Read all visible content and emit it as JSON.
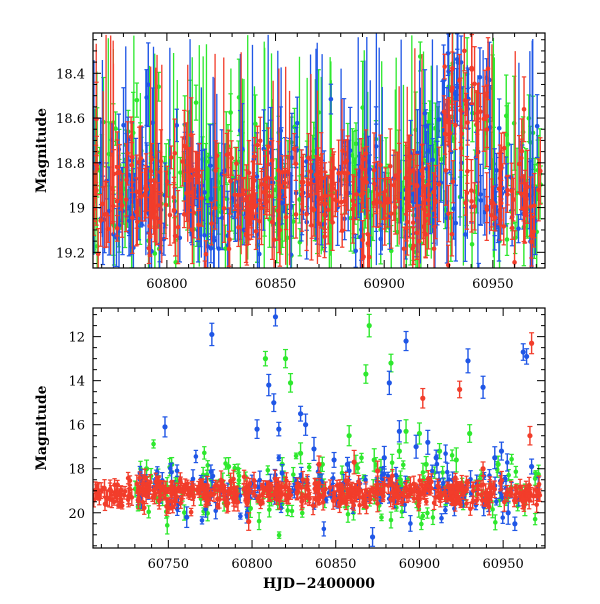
{
  "chart_data": [
    {
      "type": "scatter",
      "title": "",
      "xlabel": "",
      "ylabel": "Magnitude",
      "xlim": [
        60766,
        60974
      ],
      "ylim": [
        19.27,
        18.22
      ],
      "y_inverted": true,
      "xticks": [
        60800,
        60850,
        60900,
        60950
      ],
      "xtick_labels": [
        "60800",
        "60850",
        "60900",
        "60950"
      ],
      "yticks": [
        18.4,
        18.6,
        18.8,
        19.0,
        19.2
      ],
      "ytick_labels": [
        "18.4",
        "18.6",
        "18.8",
        "19",
        "19.2"
      ],
      "series": [
        {
          "name": "green",
          "color": "#2ee82e",
          "x_range": [
            60766,
            60972
          ],
          "y_center": 18.9,
          "y_spread": 0.35,
          "err": 0.15,
          "n": 260
        },
        {
          "name": "blue",
          "color": "#1f56e6",
          "x_range": [
            60766,
            60972
          ],
          "y_center": 18.95,
          "y_spread": 0.3,
          "err": 0.15,
          "n": 260
        },
        {
          "name": "red",
          "color": "#f23d2b",
          "x_range": [
            60766,
            60972
          ],
          "y_center": 18.95,
          "y_spread": 0.25,
          "err": 0.12,
          "n": 360
        }
      ]
    },
    {
      "type": "scatter",
      "title": "",
      "xlabel": "HJD−2400000",
      "ylabel": "Magnitude",
      "xlim": [
        60705,
        60975
      ],
      "ylim": [
        21.6,
        10.7
      ],
      "y_inverted": true,
      "xticks": [
        60750,
        60800,
        60850,
        60900,
        60950
      ],
      "xtick_labels": [
        "60750",
        "60800",
        "60850",
        "60900",
        "60950"
      ],
      "yticks": [
        12,
        14,
        16,
        18,
        20
      ],
      "ytick_labels": [
        "12",
        "14",
        "16",
        "18",
        "20"
      ],
      "series": [
        {
          "name": "green",
          "color": "#2ee82e",
          "base": {
            "x_range": [
              60730,
              60972
            ],
            "y_center": 19.0,
            "y_spread": 1.4,
            "err": 0.3,
            "n": 170
          },
          "outliers": [
            [
              60737,
              18.0
            ],
            [
              60752,
              17.8
            ],
            [
              60786,
              17.9
            ],
            [
              60799,
              19.8
            ],
            [
              60808,
              13.0
            ],
            [
              60818,
              17.8
            ],
            [
              60820,
              13.0
            ],
            [
              60823,
              14.1
            ],
            [
              60829,
              17.3
            ],
            [
              60842,
              17.8
            ],
            [
              60858,
              16.5
            ],
            [
              60862,
              17.8
            ],
            [
              60868,
              13.7
            ],
            [
              60870,
              11.5
            ],
            [
              60873,
              17.6
            ],
            [
              60877,
              18.0
            ],
            [
              60883,
              13.2
            ],
            [
              60888,
              17.2
            ],
            [
              60892,
              16.3
            ],
            [
              60900,
              16.4
            ],
            [
              60904,
              17.8
            ],
            [
              60912,
              17.2
            ],
            [
              60922,
              17.6
            ],
            [
              60930,
              16.4
            ],
            [
              60947,
              17.8
            ],
            [
              60963,
              19.6
            ]
          ]
        },
        {
          "name": "blue",
          "color": "#1f56e6",
          "base": {
            "x_range": [
              60730,
              60972
            ],
            "y_center": 19.0,
            "y_spread": 1.2,
            "err": 0.3,
            "n": 170
          },
          "outliers": [
            [
              60748,
              16.1
            ],
            [
              60761,
              20.2
            ],
            [
              60776,
              11.9
            ],
            [
              60797,
              20.1
            ],
            [
              60803,
              16.2
            ],
            [
              60810,
              14.2
            ],
            [
              60813,
              15.0
            ],
            [
              60814,
              11.1
            ],
            [
              60816,
              16.2
            ],
            [
              60818,
              18.2
            ],
            [
              60829,
              15.5
            ],
            [
              60832,
              16.0
            ],
            [
              60837,
              17.1
            ],
            [
              60849,
              17.6
            ],
            [
              60857,
              17.8
            ],
            [
              60872,
              21.1
            ],
            [
              60879,
              17.5
            ],
            [
              60882,
              14.1
            ],
            [
              60888,
              16.3
            ],
            [
              60892,
              12.2
            ],
            [
              60898,
              17.0
            ],
            [
              60905,
              16.8
            ],
            [
              60910,
              17.5
            ],
            [
              60929,
              13.1
            ],
            [
              60938,
              14.3
            ],
            [
              60945,
              17.5
            ],
            [
              60949,
              17.2
            ],
            [
              60953,
              20.0
            ],
            [
              60957,
              20.5
            ],
            [
              60962,
              12.7
            ],
            [
              60964,
              12.9
            ],
            [
              60967,
              17.9
            ]
          ]
        },
        {
          "name": "red",
          "color": "#f23d2b",
          "base": {
            "x_range": [
              60705,
              60972
            ],
            "y_center": 19.1,
            "y_spread": 0.55,
            "err": 0.3,
            "n": 520
          },
          "outliers": [
            [
              60736,
              18.4
            ],
            [
              60798,
              20.4
            ],
            [
              60820,
              18.8
            ],
            [
              60840,
              17.8
            ],
            [
              60861,
              17.7
            ],
            [
              60875,
              18.1
            ],
            [
              60902,
              14.8
            ],
            [
              60924,
              14.4
            ],
            [
              60938,
              18.0
            ],
            [
              60966,
              16.5
            ],
            [
              60967,
              12.3
            ]
          ]
        }
      ]
    }
  ]
}
